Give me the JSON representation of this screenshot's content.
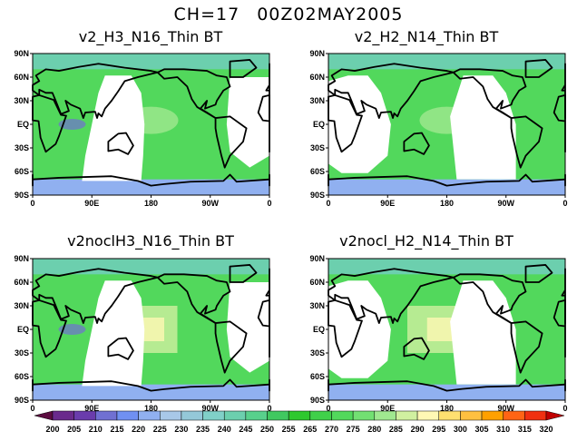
{
  "title": "CH=17   00Z02MAY2005",
  "panels": [
    {
      "title": "v2_H3_N16_Thin BT"
    },
    {
      "title": "v2_H2_N14_Thin BT"
    },
    {
      "title": "v2noclH3_N16_Thin BT"
    },
    {
      "title": "v2nocl_H2_N14_Thin BT"
    }
  ],
  "axes": {
    "lat_labels": [
      "90N",
      "60N",
      "30N",
      "EQ",
      "30S",
      "60S",
      "90S"
    ],
    "lon_labels": [
      "0",
      "90E",
      "180",
      "90W",
      "0"
    ]
  },
  "colorbar": {
    "labels": [
      "200",
      "205",
      "210",
      "215",
      "220",
      "225",
      "230",
      "235",
      "240",
      "245",
      "250",
      "255",
      "265",
      "270",
      "275",
      "280",
      "285",
      "290",
      "295",
      "300",
      "305",
      "310",
      "315",
      "320"
    ],
    "colors": [
      "#5c0c40",
      "#6a2a8c",
      "#6a3cac",
      "#7070d2",
      "#7090f2",
      "#90b0f0",
      "#a8c8e8",
      "#94c8d8",
      "#80d0c8",
      "#6ccfae",
      "#58d08c",
      "#40c860",
      "#2ec82e",
      "#40d04a",
      "#52d85c",
      "#72e072",
      "#a0e890",
      "#d0f0a0",
      "#fff8b4",
      "#ffe070",
      "#ffc040",
      "#ffa000",
      "#ff6414",
      "#f03010",
      "#c00000"
    ]
  }
}
